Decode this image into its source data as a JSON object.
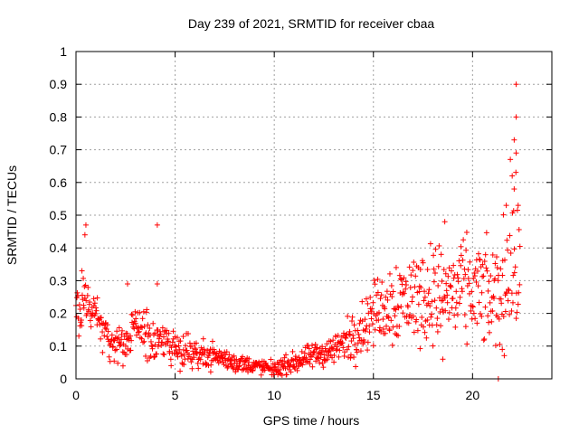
{
  "chart_data": {
    "type": "scatter",
    "title": "Day 239 of 2021, SRMTID for receiver cbaa",
    "xlabel": "GPS time / hours",
    "ylabel": "SRMTID / TECUs",
    "xlim": [
      0,
      24
    ],
    "ylim": [
      0,
      1
    ],
    "xticks": [
      0,
      5,
      10,
      15,
      20
    ],
    "xtick_labels": [
      "0",
      "5",
      "10",
      "15",
      "20"
    ],
    "yticks": [
      0,
      0.1,
      0.2,
      0.3,
      0.4,
      0.5,
      0.6,
      0.7,
      0.8,
      0.9,
      1
    ],
    "ytick_labels": [
      "0",
      "0.1",
      "0.2",
      "0.3",
      "0.4",
      "0.5",
      "0.6",
      "0.7",
      "0.8",
      "0.9",
      "1"
    ],
    "grid": true,
    "marker": "+",
    "color": "#ff0000",
    "series_envelope": {
      "description": "approximate trend of the dense scatter (hours, TECU center, spread)",
      "x": [
        0.0,
        0.5,
        1.0,
        1.5,
        2.0,
        2.5,
        3.0,
        3.5,
        4.0,
        4.5,
        5.0,
        6.0,
        7.0,
        8.0,
        9.0,
        10.0,
        11.0,
        12.0,
        13.0,
        14.0,
        15.0,
        16.0,
        17.0,
        18.0,
        19.0,
        20.0,
        20.5,
        21.0,
        21.5,
        22.0,
        22.4
      ],
      "center": [
        0.2,
        0.22,
        0.2,
        0.13,
        0.1,
        0.1,
        0.16,
        0.15,
        0.1,
        0.12,
        0.1,
        0.08,
        0.07,
        0.05,
        0.04,
        0.03,
        0.05,
        0.07,
        0.09,
        0.13,
        0.2,
        0.24,
        0.25,
        0.26,
        0.26,
        0.27,
        0.26,
        0.24,
        0.28,
        0.4,
        0.28
      ],
      "spread": [
        0.06,
        0.07,
        0.05,
        0.04,
        0.03,
        0.03,
        0.05,
        0.05,
        0.04,
        0.04,
        0.04,
        0.03,
        0.025,
        0.02,
        0.015,
        0.015,
        0.02,
        0.025,
        0.03,
        0.05,
        0.06,
        0.09,
        0.09,
        0.1,
        0.1,
        0.1,
        0.1,
        0.1,
        0.12,
        0.18,
        0.12
      ]
    },
    "notable_points": [
      {
        "x": 0.5,
        "y": 0.47
      },
      {
        "x": 0.45,
        "y": 0.44
      },
      {
        "x": 0.3,
        "y": 0.33
      },
      {
        "x": 4.1,
        "y": 0.47
      },
      {
        "x": 4.1,
        "y": 0.29
      },
      {
        "x": 2.6,
        "y": 0.29
      },
      {
        "x": 18.6,
        "y": 0.48
      },
      {
        "x": 18.5,
        "y": 0.06
      },
      {
        "x": 21.3,
        "y": 0.0
      },
      {
        "x": 22.2,
        "y": 0.9
      },
      {
        "x": 22.2,
        "y": 0.8
      },
      {
        "x": 22.1,
        "y": 0.73
      },
      {
        "x": 22.2,
        "y": 0.69
      },
      {
        "x": 22.0,
        "y": 0.62
      },
      {
        "x": 22.1,
        "y": 0.58
      },
      {
        "x": 21.7,
        "y": 0.53
      },
      {
        "x": 22.3,
        "y": 0.53
      },
      {
        "x": 21.5,
        "y": 0.09
      }
    ]
  }
}
